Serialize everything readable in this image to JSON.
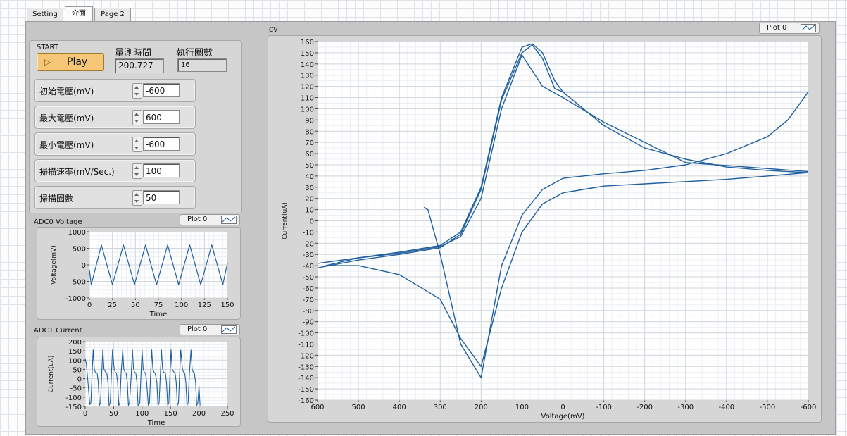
{
  "tabs": [
    {
      "label": "Setting",
      "active": false
    },
    {
      "label": "介面",
      "active": true
    },
    {
      "label": "Page 2",
      "active": false
    }
  ],
  "controls": {
    "start_label": "START",
    "play_label": "Play",
    "time_label": "量測時間",
    "time_value": "200.727",
    "cycles_label": "執行圈數",
    "cycles_value": "16",
    "fields": [
      {
        "label": "初始電壓(mV)",
        "value": "-600"
      },
      {
        "label": "最大電壓(mV)",
        "value": "600"
      },
      {
        "label": "最小電壓(mV)",
        "value": "-600"
      },
      {
        "label": "掃描速率(mV/Sec.)",
        "value": "100"
      },
      {
        "label": "掃描圈數",
        "value": "50"
      }
    ]
  },
  "colors": {
    "trace": "#1f5f9e",
    "panel": "#d6d6d6",
    "plot_bg": "#ffffff",
    "button": "#f5c776"
  },
  "chart_data": [
    {
      "id": "adc0",
      "title": "ADC0 Voltage",
      "legend": "Plot 0",
      "type": "line",
      "xlabel": "Time",
      "ylabel": "Voltage(mV)",
      "xlim": [
        0,
        150
      ],
      "ylim": [
        -1000,
        1000
      ],
      "xticks": [
        0,
        25,
        50,
        75,
        100,
        125,
        150
      ],
      "yticks": [
        -1000,
        -500,
        0,
        500,
        1000
      ],
      "series": [
        {
          "x": [
            0,
            2,
            13,
            25,
            37,
            49,
            61,
            73,
            85,
            97,
            109,
            121,
            133,
            145,
            150
          ],
          "y": [
            -150,
            -600,
            600,
            -600,
            600,
            -600,
            600,
            -600,
            600,
            -600,
            600,
            -600,
            600,
            -600,
            50
          ]
        }
      ]
    },
    {
      "id": "adc1",
      "title": "ADC1 Current",
      "legend": "Plot 0",
      "type": "line",
      "xlabel": "Time",
      "ylabel": "Current(uA)",
      "xlim": [
        0,
        250
      ],
      "ylim": [
        -150,
        200
      ],
      "xticks": [
        0,
        50,
        100,
        150,
        200,
        250
      ],
      "yticks": [
        -150,
        -100,
        -50,
        0,
        50,
        100,
        150,
        200
      ],
      "series": [
        {
          "x": [
            0,
            2,
            5,
            8,
            10,
            12,
            14,
            16,
            18,
            21,
            23,
            25,
            27,
            29,
            31,
            33,
            36,
            38,
            40,
            42,
            44,
            46,
            48,
            51,
            53,
            55,
            57,
            59,
            61,
            63,
            66,
            68,
            70,
            72,
            74,
            76,
            78,
            81,
            83,
            85,
            87,
            89,
            91,
            93,
            96,
            98,
            100,
            102,
            104,
            106,
            108,
            111,
            113,
            115,
            117,
            119,
            121,
            123,
            126,
            128,
            130,
            132,
            134,
            136,
            138,
            141,
            143,
            145,
            147,
            149,
            151,
            153,
            156,
            158,
            160,
            162,
            164,
            166,
            168,
            171,
            173,
            175,
            177,
            179,
            181,
            183,
            186,
            188,
            190,
            192,
            194,
            196,
            198,
            200,
            202
          ],
          "y": [
            110,
            80,
            -20,
            -140,
            -130,
            20,
            155,
            50,
            35,
            30,
            -20,
            -145,
            -130,
            20,
            155,
            50,
            35,
            30,
            -20,
            -145,
            -130,
            20,
            155,
            50,
            35,
            30,
            -20,
            -145,
            -130,
            20,
            155,
            50,
            35,
            30,
            -20,
            -145,
            -130,
            20,
            155,
            50,
            35,
            30,
            -20,
            -145,
            -130,
            20,
            155,
            50,
            35,
            30,
            -20,
            -145,
            -130,
            20,
            155,
            50,
            35,
            30,
            -20,
            -145,
            -130,
            20,
            155,
            50,
            35,
            30,
            -20,
            -145,
            -130,
            20,
            155,
            50,
            35,
            30,
            -20,
            -145,
            -130,
            20,
            155,
            50,
            35,
            30,
            -20,
            -145,
            -130,
            20,
            155,
            50,
            35,
            30,
            -20,
            -145,
            -130,
            -40,
            -145
          ]
        }
      ]
    },
    {
      "id": "cv",
      "title": "CV",
      "legend": "Plot 0",
      "type": "line",
      "xlabel": "Voltage(mV)",
      "ylabel": "Current(uA)",
      "xlim": [
        600,
        -600
      ],
      "ylim": [
        -160,
        160
      ],
      "xticks": [
        600,
        500,
        400,
        300,
        200,
        100,
        0,
        -100,
        -200,
        -300,
        -400,
        -500,
        -600
      ],
      "yticks": [
        -160,
        -150,
        -140,
        -130,
        -120,
        -110,
        -100,
        -90,
        -80,
        -70,
        -60,
        -50,
        -40,
        -30,
        -20,
        -10,
        0,
        10,
        20,
        30,
        40,
        50,
        60,
        70,
        80,
        90,
        100,
        110,
        120,
        130,
        140,
        150,
        160
      ],
      "grid": true,
      "series": [
        {
          "x": [
            -600,
            -500,
            -400,
            -300,
            -200,
            -100,
            -50,
            0,
            50,
            100,
            150,
            200,
            250,
            300,
            400,
            500,
            580
          ],
          "y": [
            43,
            40,
            37,
            35,
            33,
            31,
            28,
            25,
            15,
            -10,
            -60,
            -130,
            -105,
            -70,
            -48,
            -40,
            -40
          ]
        },
        {
          "x": [
            580,
            500,
            400,
            300,
            250,
            200,
            150,
            100,
            75,
            50,
            20,
            0,
            -50,
            -100,
            -200,
            -300,
            -400,
            -500,
            -600
          ],
          "y": [
            -40,
            -33,
            -28,
            -22,
            -10,
            30,
            110,
            155,
            158,
            150,
            125,
            115,
            100,
            85,
            65,
            55,
            48,
            45,
            43
          ]
        },
        {
          "x": [
            600,
            500,
            400,
            300,
            250,
            200,
            150,
            100,
            75,
            50,
            20,
            0,
            -600
          ],
          "y": [
            -42,
            -35,
            -30,
            -24,
            -12,
            28,
            108,
            150,
            157,
            145,
            118,
            115,
            115
          ]
        },
        {
          "x": [
            -600,
            -580,
            -550,
            -500,
            -400,
            -300,
            -200,
            -100,
            0,
            50,
            100,
            150,
            200,
            250,
            300,
            330,
            340
          ],
          "y": [
            115,
            105,
            90,
            75,
            60,
            50,
            45,
            42,
            38,
            28,
            5,
            -40,
            -140,
            -110,
            -30,
            10,
            12
          ]
        },
        {
          "x": [
            600,
            500,
            400,
            300,
            250,
            200,
            150,
            100,
            50,
            0,
            -100,
            -300,
            -600
          ],
          "y": [
            -38,
            -33,
            -29,
            -23,
            -14,
            20,
            100,
            148,
            120,
            110,
            88,
            52,
            44
          ]
        }
      ]
    }
  ]
}
